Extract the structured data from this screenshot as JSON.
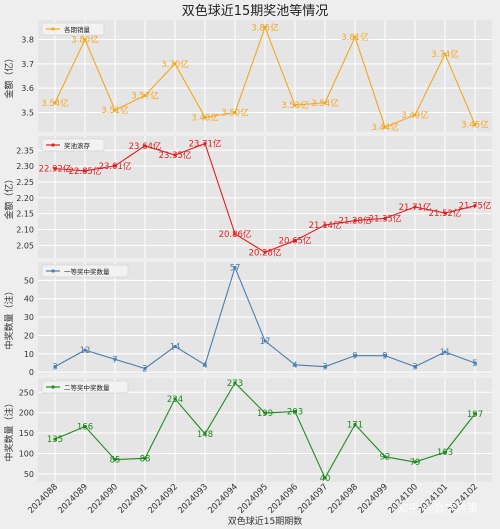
{
  "figure": {
    "title": "双色球近15期奖池等情况",
    "xlabel": "双色球近15期期数",
    "watermark": "知乎 @数字故事"
  },
  "chart_data": [
    {
      "type": "line",
      "color": "#f5a623",
      "legend": "各期销量",
      "ylabel": "金额（亿）",
      "ylim": [
        3.42,
        3.88
      ],
      "yticks": [
        3.5,
        3.6,
        3.7,
        3.8
      ],
      "grid": true,
      "legend_position": "top-left",
      "categories": [
        "2024088",
        "2024089",
        "2024090",
        "2024091",
        "2024092",
        "2024093",
        "2024094",
        "2024095",
        "2024096",
        "2024097",
        "2024098",
        "2024099",
        "2024100",
        "2024101",
        "2024102"
      ],
      "values": [
        3.54,
        3.8,
        3.51,
        3.57,
        3.7,
        3.48,
        3.5,
        3.85,
        3.53,
        3.54,
        3.81,
        3.44,
        3.49,
        3.74,
        3.45
      ],
      "labels": [
        "3.54亿",
        "3.80亿",
        "3.51亿",
        "3.57亿",
        "3.70亿",
        "3.48亿",
        "3.50亿",
        "3.85亿",
        "3.53亿",
        "3.54亿",
        "3.81亿",
        "3.44亿",
        "3.49亿",
        "3.74亿",
        "3.45亿"
      ]
    },
    {
      "type": "line",
      "color": "#e02020",
      "legend": "奖池滚存",
      "ylabel": "金额（亿）",
      "ylim": [
        20.1,
        23.95
      ],
      "yticks": [
        2.05,
        2.1,
        2.15,
        2.2,
        2.25,
        2.3,
        2.35
      ],
      "ytick_labels": [
        "2.05",
        "2.10",
        "2.15",
        "2.20",
        "2.25",
        "2.30",
        "2.35"
      ],
      "grid": true,
      "legend_position": "top-left",
      "categories": [
        "2024088",
        "2024089",
        "2024090",
        "2024091",
        "2024092",
        "2024093",
        "2024094",
        "2024095",
        "2024096",
        "2024097",
        "2024098",
        "2024099",
        "2024100",
        "2024101",
        "2024102"
      ],
      "values": [
        22.92,
        22.85,
        23.01,
        23.64,
        23.35,
        23.71,
        20.86,
        20.28,
        20.65,
        21.14,
        21.28,
        21.35,
        21.71,
        21.52,
        21.75
      ],
      "labels": [
        "22.92亿",
        "22.85亿",
        "23.01亿",
        "23.64亿",
        "23.35亿",
        "23.71亿",
        "20.86亿",
        "20.28亿",
        "20.65亿",
        "21.14亿",
        "21.28亿",
        "21.35亿",
        "21.71亿",
        "21.52亿",
        "21.75亿"
      ]
    },
    {
      "type": "line",
      "color": "#4a7fb0",
      "legend": "一等奖中奖数量",
      "ylabel": "中奖数量（注）",
      "ylim": [
        -1,
        60
      ],
      "yticks": [
        0,
        10,
        20,
        30,
        40,
        50
      ],
      "grid": true,
      "legend_position": "top-left",
      "categories": [
        "2024088",
        "2024089",
        "2024090",
        "2024091",
        "2024092",
        "2024093",
        "2024094",
        "2024095",
        "2024096",
        "2024097",
        "2024098",
        "2024099",
        "2024100",
        "2024101",
        "2024102"
      ],
      "values": [
        3,
        12,
        7,
        2,
        14,
        4,
        57,
        17,
        4,
        3,
        9,
        9,
        3,
        11,
        5
      ],
      "labels": [
        "3",
        "12",
        "7",
        "2",
        "14",
        "4",
        "57",
        "17",
        "4",
        "3",
        "9",
        "9",
        "3",
        "11",
        "5"
      ]
    },
    {
      "type": "line",
      "color": "#1e8a1e",
      "legend": "二等奖中奖数量",
      "ylabel": "中奖数量（注）",
      "ylim": [
        30,
        285
      ],
      "yticks": [
        50,
        100,
        150,
        200,
        250
      ],
      "grid": true,
      "legend_position": "top-left",
      "categories": [
        "2024088",
        "2024089",
        "2024090",
        "2024091",
        "2024092",
        "2024093",
        "2024094",
        "2024095",
        "2024096",
        "2024097",
        "2024098",
        "2024099",
        "2024100",
        "2024101",
        "2024102"
      ],
      "values": [
        135,
        166,
        85,
        88,
        234,
        148,
        273,
        199,
        203,
        40,
        171,
        92,
        79,
        103,
        197
      ],
      "labels": [
        "135",
        "166",
        "85",
        "88",
        "234",
        "148",
        "273",
        "199",
        "203",
        "40",
        "171",
        "92",
        "79",
        "103",
        "197"
      ]
    }
  ]
}
